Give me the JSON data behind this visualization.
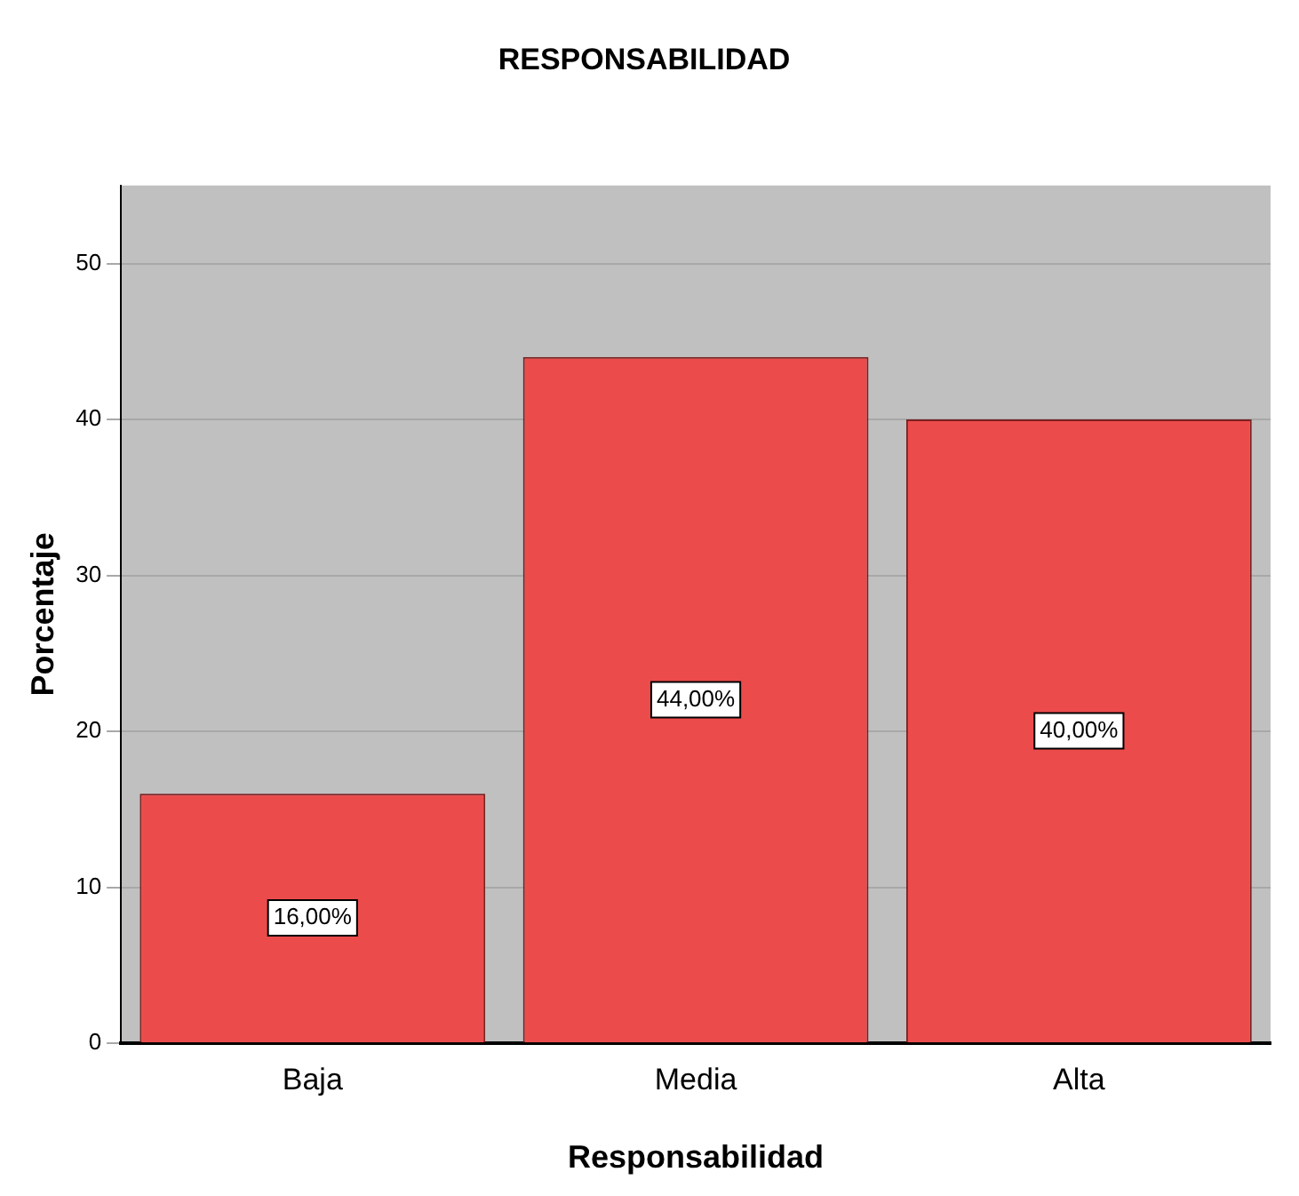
{
  "chart_data": {
    "type": "bar",
    "title": "RESPONSABILIDAD",
    "xlabel": "Responsabilidad",
    "ylabel": "Porcentaje",
    "categories": [
      "Baja",
      "Media",
      "Alta"
    ],
    "values": [
      16,
      44,
      40
    ],
    "value_labels": [
      "16,00%",
      "44,00%",
      "40,00%"
    ],
    "color": "#ec4b4c",
    "ylim": [
      0,
      55
    ],
    "yticks": [
      0,
      10,
      20,
      30,
      40,
      50
    ],
    "grid": "y"
  }
}
